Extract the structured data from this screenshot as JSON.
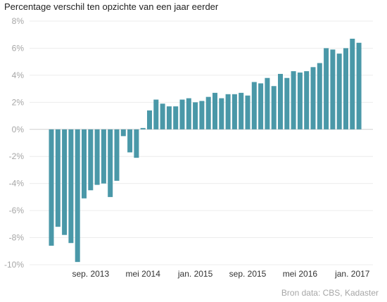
{
  "chart_data": {
    "type": "bar",
    "title": "Percentage verschil ten opzichte van een jaar eerder",
    "source": "Bron data: CBS, Kadaster",
    "xlabel": "",
    "ylabel": "",
    "ylim": [
      -10,
      8
    ],
    "ytick_labels": [
      "8%",
      "6%",
      "4%",
      "2%",
      "0%",
      "-2%",
      "-4%",
      "-6%",
      "-8%",
      "-10%"
    ],
    "ytick_values": [
      8,
      6,
      4,
      2,
      0,
      -2,
      -4,
      -6,
      -8,
      -10
    ],
    "xtick_labels": [
      {
        "label": "sep. 2013",
        "index": 6
      },
      {
        "label": "mei 2014",
        "index": 14
      },
      {
        "label": "jan. 2015",
        "index": 22
      },
      {
        "label": "sep. 2015",
        "index": 30
      },
      {
        "label": "mei 2016",
        "index": 38
      },
      {
        "label": "jan. 2017",
        "index": 46
      }
    ],
    "grid": true,
    "bar_color": "#4a98a8",
    "values": [
      -8.6,
      -7.2,
      -7.8,
      -8.4,
      -9.8,
      -5.1,
      -4.5,
      -4.1,
      -4.0,
      -5.0,
      -3.8,
      -0.5,
      -1.7,
      -2.1,
      0.1,
      1.4,
      2.2,
      1.9,
      1.7,
      1.7,
      2.2,
      2.3,
      2.0,
      2.1,
      2.4,
      2.7,
      2.3,
      2.6,
      2.6,
      2.7,
      2.5,
      3.5,
      3.4,
      3.8,
      3.2,
      4.1,
      3.8,
      4.3,
      4.2,
      4.3,
      4.6,
      4.9,
      6.0,
      5.9,
      5.6,
      6.0,
      6.7,
      6.4
    ]
  }
}
